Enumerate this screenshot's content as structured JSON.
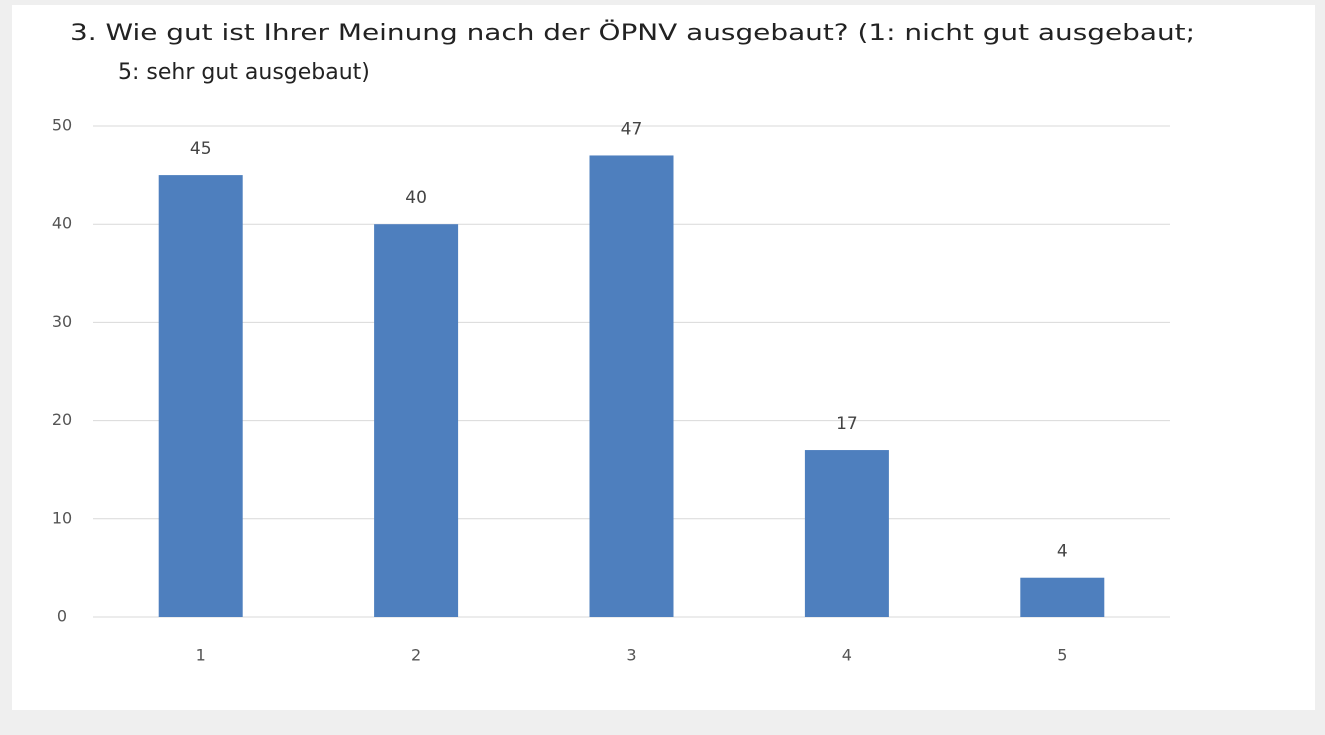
{
  "chart_data": {
    "type": "bar",
    "title": [
      "3.  Wie gut ist Ihrer Meinung nach der ÖPNV ausgebaut? (1: nicht gut ausgebaut;",
      "5: sehr gut ausgebaut)"
    ],
    "categories": [
      "1",
      "2",
      "3",
      "4",
      "5"
    ],
    "values": [
      45,
      40,
      47,
      17,
      4
    ],
    "color": "#4e7fbe",
    "ylim": [
      0,
      50
    ],
    "yticks": [
      0,
      10,
      20,
      30,
      40,
      50
    ],
    "grid": true
  }
}
